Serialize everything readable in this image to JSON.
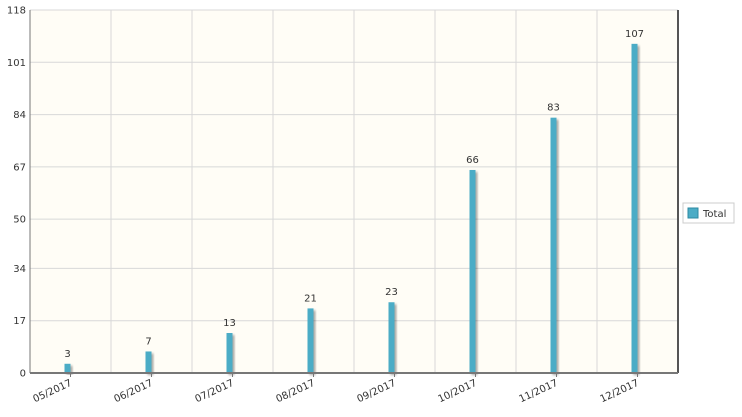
{
  "chart_data": {
    "type": "bar",
    "title": "",
    "xlabel": "",
    "ylabel": "",
    "categories": [
      "05/2017",
      "06/2017",
      "07/2017",
      "08/2017",
      "09/2017",
      "10/2017",
      "11/2017",
      "12/2017"
    ],
    "series": [
      {
        "name": "Total",
        "values": [
          3,
          7,
          13,
          21,
          23,
          66,
          83,
          107
        ]
      }
    ],
    "ylim": [
      0,
      118
    ],
    "yticks": [
      0,
      17,
      34,
      50,
      67,
      84,
      101,
      118
    ],
    "grid": true,
    "legend_position": "right",
    "data_labels": true,
    "colors": {
      "bar": "#4bacc6",
      "plot_background": "#fffdf6",
      "grid": "#d8d8d8",
      "axis": "#777777"
    }
  }
}
